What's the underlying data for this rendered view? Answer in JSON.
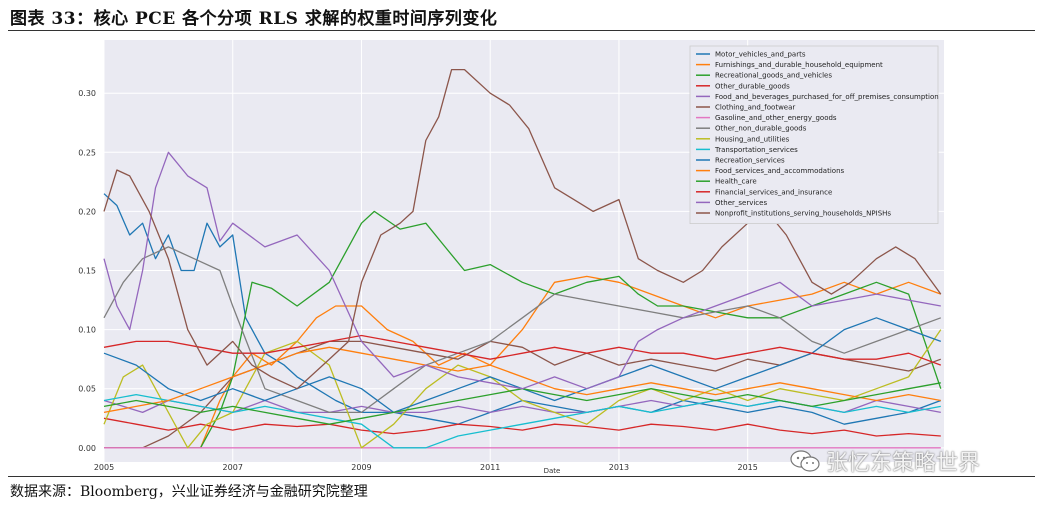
{
  "figure": {
    "title": "图表 33：核心 PCE 各个分项 RLS 求解的权重时间序列变化",
    "source": "数据来源：Bloomberg，兴业证券经济与金融研究院整理",
    "watermark": "张忆东策略世界"
  },
  "chart_data": {
    "type": "line",
    "title": "",
    "xlabel": "Date",
    "ylabel": "",
    "xlim": [
      2005.0,
      2018.05
    ],
    "ylim": [
      -0.012,
      0.345
    ],
    "xticks": [
      2005,
      2007,
      2009,
      2011,
      2013,
      2015
    ],
    "xtick_labels": [
      "2005",
      "2007",
      "2009",
      "2011",
      "2013",
      "2015"
    ],
    "yticks": [
      0.0,
      0.05,
      0.1,
      0.15,
      0.2,
      0.25,
      0.3
    ],
    "ytick_labels": [
      "0.00",
      "0.05",
      "0.10",
      "0.15",
      "0.20",
      "0.25",
      "0.30"
    ],
    "grid": true,
    "legend_position": "top-right",
    "series": [
      {
        "name": "Motor_vehicles_and_parts",
        "color": "#1f77b4",
        "x": [
          2005.0,
          2005.2,
          2005.4,
          2005.6,
          2005.8,
          2006.0,
          2006.2,
          2006.4,
          2006.6,
          2006.8,
          2007.0,
          2007.2,
          2007.5,
          2007.8,
          2008.0,
          2008.3,
          2008.6,
          2009.0,
          2009.5,
          2010.0,
          2010.5,
          2011.0,
          2011.5,
          2012.0,
          2012.5,
          2013.0,
          2013.5,
          2014.0,
          2014.5,
          2015.0,
          2015.5,
          2016.0,
          2016.5,
          2017.0,
          2017.5,
          2018.0
        ],
        "y": [
          0.215,
          0.205,
          0.18,
          0.19,
          0.16,
          0.18,
          0.15,
          0.15,
          0.19,
          0.17,
          0.18,
          0.11,
          0.08,
          0.07,
          0.06,
          0.05,
          0.04,
          0.03,
          0.03,
          0.025,
          0.02,
          0.03,
          0.04,
          0.035,
          0.03,
          0.035,
          0.03,
          0.04,
          0.035,
          0.03,
          0.035,
          0.03,
          0.02,
          0.025,
          0.03,
          0.04
        ]
      },
      {
        "name": "Furnishings_and_durable_household_equipment",
        "color": "#ff7f0e",
        "x": [
          2005.0,
          2005.5,
          2006.0,
          2006.5,
          2006.8,
          2007.0,
          2007.3,
          2007.6,
          2008.0,
          2008.3,
          2008.6,
          2009.0,
          2009.4,
          2009.8,
          2010.2,
          2010.6,
          2011.0,
          2011.5,
          2012.0,
          2012.5,
          2013.0,
          2013.5,
          2014.0,
          2014.5,
          2015.0,
          2015.5,
          2016.0,
          2016.5,
          2017.0,
          2017.5,
          2018.0
        ],
        "y": [
          0.0,
          0.0,
          0.0,
          0.0,
          0.04,
          0.06,
          0.08,
          0.07,
          0.09,
          0.11,
          0.12,
          0.12,
          0.1,
          0.09,
          0.07,
          0.08,
          0.07,
          0.1,
          0.14,
          0.145,
          0.14,
          0.13,
          0.12,
          0.11,
          0.12,
          0.125,
          0.13,
          0.14,
          0.13,
          0.14,
          0.13
        ]
      },
      {
        "name": "Recreational_goods_and_vehicles",
        "color": "#2ca02c",
        "x": [
          2005.0,
          2005.5,
          2006.0,
          2006.5,
          2006.8,
          2007.0,
          2007.3,
          2007.6,
          2008.0,
          2008.5,
          2009.0,
          2009.2,
          2009.6,
          2010.0,
          2010.3,
          2010.6,
          2011.0,
          2011.5,
          2012.0,
          2012.5,
          2013.0,
          2013.3,
          2013.6,
          2014.0,
          2014.5,
          2015.0,
          2015.5,
          2016.0,
          2016.5,
          2017.0,
          2017.5,
          2018.0
        ],
        "y": [
          0.0,
          0.0,
          0.0,
          0.0,
          0.03,
          0.06,
          0.14,
          0.135,
          0.12,
          0.14,
          0.19,
          0.2,
          0.185,
          0.19,
          0.17,
          0.15,
          0.155,
          0.14,
          0.13,
          0.14,
          0.145,
          0.13,
          0.12,
          0.12,
          0.115,
          0.11,
          0.11,
          0.12,
          0.13,
          0.14,
          0.13,
          0.05
        ]
      },
      {
        "name": "Other_durable_goods",
        "color": "#d62728",
        "x": [
          2005.0,
          2005.5,
          2006.0,
          2006.5,
          2007.0,
          2007.5,
          2008.0,
          2008.5,
          2009.0,
          2009.5,
          2010.0,
          2010.5,
          2011.0,
          2011.5,
          2012.0,
          2012.5,
          2013.0,
          2013.5,
          2014.0,
          2014.5,
          2015.0,
          2015.5,
          2016.0,
          2016.5,
          2017.0,
          2017.5,
          2018.0
        ],
        "y": [
          0.025,
          0.02,
          0.015,
          0.02,
          0.015,
          0.02,
          0.018,
          0.02,
          0.015,
          0.012,
          0.015,
          0.02,
          0.018,
          0.015,
          0.02,
          0.018,
          0.015,
          0.02,
          0.018,
          0.015,
          0.02,
          0.015,
          0.012,
          0.015,
          0.01,
          0.012,
          0.01
        ]
      },
      {
        "name": "Food_and_beverages_purchased_for_off_premises_consumption",
        "color": "#9467bd",
        "x": [
          2005.0,
          2005.3,
          2005.6,
          2006.0,
          2006.5,
          2007.0,
          2007.5,
          2008.0,
          2008.5,
          2009.0,
          2009.5,
          2010.0,
          2010.5,
          2011.0,
          2011.5,
          2012.0,
          2012.5,
          2013.0,
          2013.5,
          2014.0,
          2014.5,
          2015.0,
          2015.5,
          2016.0,
          2016.5,
          2017.0,
          2017.5,
          2018.0
        ],
        "y": [
          0.04,
          0.035,
          0.03,
          0.04,
          0.035,
          0.03,
          0.04,
          0.03,
          0.03,
          0.035,
          0.03,
          0.03,
          0.035,
          0.03,
          0.035,
          0.03,
          0.03,
          0.035,
          0.04,
          0.035,
          0.04,
          0.035,
          0.04,
          0.035,
          0.03,
          0.04,
          0.035,
          0.03
        ]
      },
      {
        "name": "Clothing_and_footwear",
        "color": "#8c564b",
        "x": [
          2005.0,
          2005.3,
          2005.6,
          2006.0,
          2006.5,
          2007.0,
          2007.5,
          2008.0,
          2008.5,
          2009.0,
          2009.5,
          2010.0,
          2010.5,
          2011.0,
          2011.5,
          2012.0,
          2012.5,
          2013.0,
          2013.5,
          2014.0,
          2014.5,
          2015.0,
          2015.5,
          2016.0,
          2016.5,
          2017.0,
          2017.5,
          2018.0
        ],
        "y": [
          0.0,
          0.0,
          0.0,
          0.01,
          0.03,
          0.06,
          0.07,
          0.08,
          0.09,
          0.09,
          0.085,
          0.08,
          0.075,
          0.09,
          0.085,
          0.07,
          0.08,
          0.07,
          0.075,
          0.07,
          0.065,
          0.075,
          0.07,
          0.08,
          0.075,
          0.07,
          0.065,
          0.075
        ]
      },
      {
        "name": "Gasoline_and_other_energy_goods",
        "color": "#e377c2",
        "x": [
          2005.0,
          2018.0
        ],
        "y": [
          0.0,
          0.0
        ]
      },
      {
        "name": "Other_non_durable_goods",
        "color": "#7f7f7f",
        "x": [
          2005.0,
          2005.3,
          2005.6,
          2006.0,
          2006.4,
          2006.8,
          2007.0,
          2007.5,
          2008.0,
          2008.5,
          2009.0,
          2009.5,
          2010.0,
          2010.5,
          2011.0,
          2011.5,
          2012.0,
          2012.5,
          2013.0,
          2013.5,
          2014.0,
          2014.5,
          2015.0,
          2015.5,
          2016.0,
          2016.5,
          2017.0,
          2017.5,
          2018.0
        ],
        "y": [
          0.11,
          0.14,
          0.16,
          0.17,
          0.16,
          0.15,
          0.12,
          0.05,
          0.04,
          0.03,
          0.03,
          0.05,
          0.07,
          0.08,
          0.09,
          0.11,
          0.13,
          0.125,
          0.12,
          0.115,
          0.11,
          0.115,
          0.12,
          0.11,
          0.09,
          0.08,
          0.09,
          0.1,
          0.11
        ]
      },
      {
        "name": "Housing_and_utilities",
        "color": "#bcbd22",
        "x": [
          2005.0,
          2005.3,
          2005.6,
          2006.0,
          2006.3,
          2006.6,
          2007.0,
          2007.5,
          2008.0,
          2008.5,
          2009.0,
          2009.5,
          2010.0,
          2010.5,
          2011.0,
          2011.5,
          2012.0,
          2012.5,
          2013.0,
          2013.5,
          2014.0,
          2014.5,
          2015.0,
          2015.5,
          2016.0,
          2016.5,
          2017.0,
          2017.5,
          2018.0
        ],
        "y": [
          0.02,
          0.06,
          0.07,
          0.03,
          0.0,
          0.02,
          0.03,
          0.08,
          0.09,
          0.07,
          0.0,
          0.02,
          0.05,
          0.07,
          0.06,
          0.04,
          0.03,
          0.02,
          0.04,
          0.05,
          0.04,
          0.05,
          0.04,
          0.05,
          0.045,
          0.04,
          0.05,
          0.06,
          0.1
        ]
      },
      {
        "name": "Transportation_services",
        "color": "#17becf",
        "x": [
          2005.0,
          2005.5,
          2006.0,
          2006.5,
          2007.0,
          2007.5,
          2008.0,
          2008.5,
          2009.0,
          2009.5,
          2010.0,
          2010.5,
          2011.0,
          2011.5,
          2012.0,
          2012.5,
          2013.0,
          2013.5,
          2014.0,
          2014.5,
          2015.0,
          2015.5,
          2016.0,
          2016.5,
          2017.0,
          2017.5,
          2018.0
        ],
        "y": [
          0.04,
          0.045,
          0.04,
          0.035,
          0.03,
          0.035,
          0.03,
          0.025,
          0.02,
          0.0,
          0.0,
          0.01,
          0.015,
          0.02,
          0.025,
          0.03,
          0.035,
          0.03,
          0.035,
          0.04,
          0.035,
          0.04,
          0.035,
          0.03,
          0.035,
          0.03,
          0.035
        ]
      },
      {
        "name": "Recreation_services",
        "color": "#1f77b4",
        "x": [
          2005.0,
          2005.5,
          2006.0,
          2006.5,
          2007.0,
          2007.5,
          2008.0,
          2008.5,
          2009.0,
          2009.5,
          2010.0,
          2010.5,
          2011.0,
          2011.5,
          2012.0,
          2012.5,
          2013.0,
          2013.5,
          2014.0,
          2014.5,
          2015.0,
          2015.5,
          2016.0,
          2016.5,
          2017.0,
          2017.5,
          2018.0
        ],
        "y": [
          0.08,
          0.07,
          0.05,
          0.04,
          0.05,
          0.04,
          0.05,
          0.06,
          0.05,
          0.03,
          0.04,
          0.05,
          0.06,
          0.05,
          0.04,
          0.05,
          0.06,
          0.07,
          0.06,
          0.05,
          0.06,
          0.07,
          0.08,
          0.1,
          0.11,
          0.1,
          0.09
        ]
      },
      {
        "name": "Food_services_and_accommodations",
        "color": "#ff7f0e",
        "x": [
          2005.0,
          2005.5,
          2006.0,
          2006.5,
          2007.0,
          2007.5,
          2008.0,
          2008.5,
          2009.0,
          2009.5,
          2010.0,
          2010.5,
          2011.0,
          2011.5,
          2012.0,
          2012.5,
          2013.0,
          2013.5,
          2014.0,
          2014.5,
          2015.0,
          2015.5,
          2016.0,
          2016.5,
          2017.0,
          2017.5,
          2018.0
        ],
        "y": [
          0.03,
          0.035,
          0.04,
          0.05,
          0.06,
          0.07,
          0.08,
          0.085,
          0.08,
          0.075,
          0.07,
          0.065,
          0.07,
          0.06,
          0.05,
          0.045,
          0.05,
          0.055,
          0.05,
          0.045,
          0.05,
          0.055,
          0.05,
          0.045,
          0.04,
          0.045,
          0.04
        ]
      },
      {
        "name": "Health_care",
        "color": "#2ca02c",
        "x": [
          2005.0,
          2005.5,
          2006.0,
          2006.5,
          2007.0,
          2007.5,
          2008.0,
          2008.5,
          2009.0,
          2009.5,
          2010.0,
          2010.5,
          2011.0,
          2011.5,
          2012.0,
          2012.5,
          2013.0,
          2013.5,
          2014.0,
          2014.5,
          2015.0,
          2015.5,
          2016.0,
          2016.5,
          2017.0,
          2017.5,
          2018.0
        ],
        "y": [
          0.035,
          0.04,
          0.035,
          0.03,
          0.035,
          0.03,
          0.025,
          0.02,
          0.025,
          0.03,
          0.035,
          0.04,
          0.045,
          0.05,
          0.045,
          0.04,
          0.045,
          0.05,
          0.045,
          0.04,
          0.045,
          0.04,
          0.035,
          0.04,
          0.045,
          0.05,
          0.055
        ]
      },
      {
        "name": "Financial_services_and_insurance",
        "color": "#d62728",
        "x": [
          2005.0,
          2005.5,
          2006.0,
          2006.5,
          2007.0,
          2007.5,
          2008.0,
          2008.5,
          2009.0,
          2009.5,
          2010.0,
          2010.5,
          2011.0,
          2011.5,
          2012.0,
          2012.5,
          2013.0,
          2013.5,
          2014.0,
          2014.5,
          2015.0,
          2015.5,
          2016.0,
          2016.5,
          2017.0,
          2017.5,
          2018.0
        ],
        "y": [
          0.085,
          0.09,
          0.09,
          0.085,
          0.08,
          0.08,
          0.085,
          0.09,
          0.095,
          0.09,
          0.085,
          0.08,
          0.075,
          0.08,
          0.085,
          0.08,
          0.085,
          0.08,
          0.08,
          0.075,
          0.08,
          0.085,
          0.08,
          0.075,
          0.075,
          0.08,
          0.07
        ]
      },
      {
        "name": "Other_services",
        "color": "#9467bd",
        "x": [
          2005.0,
          2005.2,
          2005.4,
          2005.6,
          2005.8,
          2006.0,
          2006.3,
          2006.6,
          2006.8,
          2007.0,
          2007.5,
          2008.0,
          2008.5,
          2009.0,
          2009.5,
          2010.0,
          2010.5,
          2011.0,
          2011.5,
          2012.0,
          2012.5,
          2013.0,
          2013.3,
          2013.6,
          2014.0,
          2014.5,
          2015.0,
          2015.5,
          2016.0,
          2016.5,
          2017.0,
          2017.5,
          2018.0
        ],
        "y": [
          0.16,
          0.12,
          0.1,
          0.15,
          0.22,
          0.25,
          0.23,
          0.22,
          0.175,
          0.19,
          0.17,
          0.18,
          0.15,
          0.09,
          0.06,
          0.07,
          0.06,
          0.055,
          0.05,
          0.06,
          0.05,
          0.06,
          0.09,
          0.1,
          0.11,
          0.12,
          0.13,
          0.14,
          0.12,
          0.125,
          0.13,
          0.125,
          0.12
        ]
      },
      {
        "name": "Nonprofit_institutions_serving_households_NPISHs",
        "color": "#8c564b",
        "x": [
          2005.0,
          2005.2,
          2005.4,
          2005.7,
          2006.0,
          2006.3,
          2006.6,
          2007.0,
          2007.3,
          2007.6,
          2008.0,
          2008.4,
          2008.8,
          2009.0,
          2009.3,
          2009.6,
          2009.8,
          2010.0,
          2010.2,
          2010.4,
          2010.6,
          2011.0,
          2011.3,
          2011.6,
          2012.0,
          2012.3,
          2012.6,
          2013.0,
          2013.3,
          2013.6,
          2014.0,
          2014.3,
          2014.6,
          2015.0,
          2015.3,
          2015.6,
          2016.0,
          2016.3,
          2016.6,
          2017.0,
          2017.3,
          2017.6,
          2018.0
        ],
        "y": [
          0.2,
          0.235,
          0.23,
          0.2,
          0.16,
          0.1,
          0.07,
          0.09,
          0.07,
          0.06,
          0.05,
          0.07,
          0.09,
          0.14,
          0.18,
          0.19,
          0.2,
          0.26,
          0.28,
          0.32,
          0.32,
          0.3,
          0.29,
          0.27,
          0.22,
          0.21,
          0.2,
          0.21,
          0.16,
          0.15,
          0.14,
          0.15,
          0.17,
          0.19,
          0.2,
          0.18,
          0.14,
          0.13,
          0.14,
          0.16,
          0.17,
          0.16,
          0.13
        ]
      }
    ]
  }
}
